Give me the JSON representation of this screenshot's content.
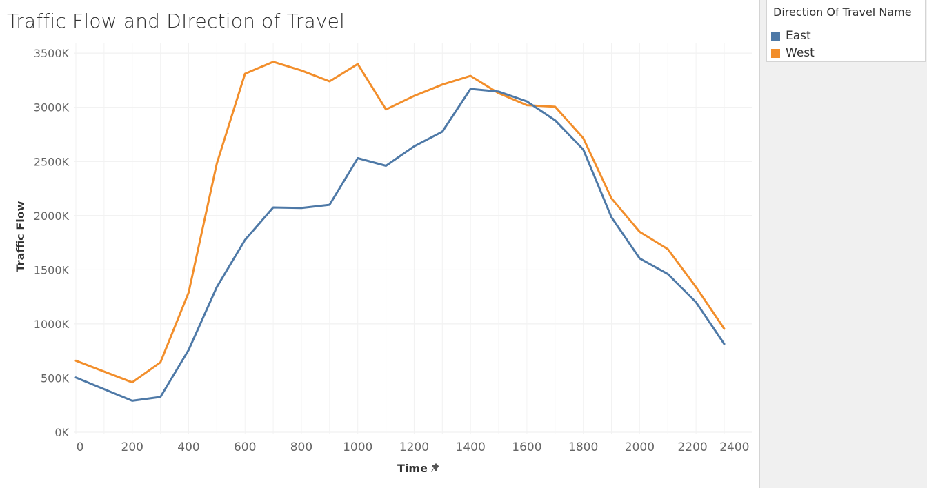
{
  "title": "Traffic Flow and DIrection of Travel",
  "legend": {
    "title": "Direction Of Travel Name",
    "items": [
      {
        "label": "East",
        "color": "#4e79a7"
      },
      {
        "label": "West",
        "color": "#f28e2b"
      }
    ]
  },
  "chart_data": {
    "type": "line",
    "title": "Traffic Flow and DIrection of Travel",
    "xlabel": "Time",
    "ylabel": "Traffic Flow",
    "xlim": [
      0,
      2400
    ],
    "ylim": [
      0,
      3500
    ],
    "x_ticks": [
      "0",
      "200",
      "400",
      "600",
      "800",
      "1000",
      "1200",
      "1400",
      "1600",
      "1800",
      "2000",
      "2200",
      "2400"
    ],
    "y_ticks": [
      {
        "value": 0,
        "label": "0K"
      },
      {
        "value": 500,
        "label": "500K"
      },
      {
        "value": 1000,
        "label": "1000K"
      },
      {
        "value": 1500,
        "label": "1500K"
      },
      {
        "value": 2000,
        "label": "2000K"
      },
      {
        "value": 2500,
        "label": "2500K"
      },
      {
        "value": 3000,
        "label": "3000K"
      },
      {
        "value": 3500,
        "label": "3500K"
      }
    ],
    "x": [
      0,
      200,
      300,
      400,
      500,
      600,
      700,
      800,
      900,
      1000,
      1100,
      1200,
      1300,
      1400,
      1500,
      1600,
      1700,
      1800,
      1900,
      2000,
      2100,
      2200,
      2300
    ],
    "series": [
      {
        "name": "East",
        "color": "#4e79a7",
        "values": [
          505,
          290,
          325,
          760,
          1340,
          1775,
          2075,
          2070,
          2100,
          2530,
          2460,
          2640,
          2775,
          3170,
          3145,
          3055,
          2880,
          2610,
          1985,
          1605,
          1460,
          1200,
          815
        ]
      },
      {
        "name": "West",
        "color": "#f28e2b",
        "values": [
          660,
          460,
          645,
          1290,
          2480,
          3310,
          3420,
          3340,
          3240,
          3400,
          2980,
          3105,
          3210,
          3290,
          3130,
          3020,
          3005,
          2715,
          2160,
          1850,
          1690,
          1340,
          955
        ]
      }
    ],
    "grid": true,
    "legend_position": "top-right"
  }
}
